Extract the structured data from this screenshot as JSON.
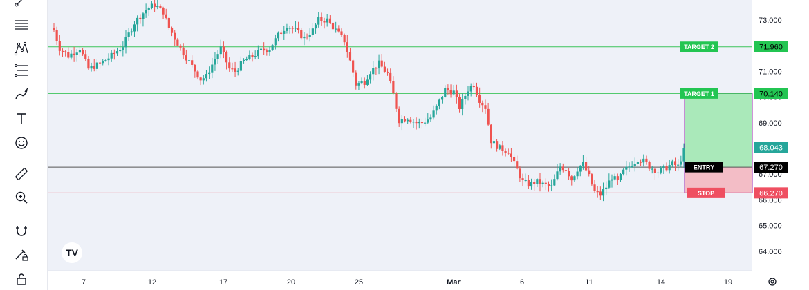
{
  "toolbar": {
    "tools": [
      "trend-line-icon",
      "horizontal-lines-icon",
      "pattern-icon",
      "fib-levels-icon",
      "brush-icon",
      "text-icon",
      "emoji-icon",
      "ruler-icon",
      "zoom-in-icon",
      "magnet-icon",
      "pencil-lock-icon",
      "lock-icon"
    ]
  },
  "logo": "TV",
  "colors": {
    "up": "#26a69a",
    "down": "#ef5350",
    "target": "#3cc45a",
    "stop": "#f05a6a",
    "entry": "#000000",
    "profit_fill": "#a5e8b6",
    "loss_fill": "#f2b9c3",
    "box_border": "#9c27b0",
    "bg": "#eef1f8"
  },
  "chart_data": {
    "type": "candlestick",
    "ylim": [
      63.6,
      73.8
    ],
    "y_ticks": [
      "73.000",
      "72.000",
      "71.000",
      "70.000",
      "69.000",
      "68.000",
      "67.000",
      "66.000",
      "65.000",
      "64.000"
    ],
    "x_labels": [
      "7",
      "12",
      "17",
      "20",
      "25",
      "Mar",
      "6",
      "11",
      "14",
      "19"
    ],
    "levels": [
      {
        "name": "TARGET 2",
        "value": 71.96,
        "label": "71.960"
      },
      {
        "name": "TARGET 1",
        "value": 70.14,
        "label": "70.140"
      },
      {
        "name": "ENTRY",
        "value": 67.27,
        "label": "67.270"
      },
      {
        "name": "STOP",
        "value": 66.27,
        "label": "66.270"
      }
    ],
    "last_price": {
      "value": 68.043,
      "label": "68.043"
    },
    "close_path": [
      [
        0,
        72.6
      ],
      [
        2,
        71.9
      ],
      [
        5,
        71.6
      ],
      [
        9,
        71.9
      ],
      [
        12,
        71.1
      ],
      [
        16,
        71.3
      ],
      [
        20,
        71.6
      ],
      [
        24,
        72.0
      ],
      [
        28,
        72.9
      ],
      [
        32,
        73.4
      ],
      [
        35,
        73.6
      ],
      [
        38,
        73.3
      ],
      [
        40,
        72.7
      ],
      [
        44,
        71.9
      ],
      [
        48,
        71.2
      ],
      [
        51,
        70.7
      ],
      [
        53,
        70.8
      ],
      [
        56,
        71.5
      ],
      [
        58,
        71.9
      ],
      [
        61,
        71.1
      ],
      [
        63,
        71.0
      ],
      [
        66,
        71.4
      ],
      [
        69,
        71.6
      ],
      [
        72,
        71.8
      ],
      [
        75,
        71.9
      ],
      [
        78,
        72.4
      ],
      [
        81,
        72.8
      ],
      [
        84,
        72.6
      ],
      [
        87,
        72.3
      ],
      [
        90,
        72.6
      ],
      [
        92,
        73.0
      ],
      [
        95,
        73.0
      ],
      [
        98,
        72.6
      ],
      [
        101,
        72.2
      ],
      [
        103,
        71.4
      ],
      [
        105,
        70.5
      ],
      [
        108,
        70.6
      ],
      [
        110,
        71.0
      ],
      [
        113,
        71.3
      ],
      [
        116,
        70.9
      ],
      [
        118,
        70.1
      ],
      [
        120,
        69.1
      ],
      [
        123,
        69.2
      ],
      [
        126,
        69.0
      ],
      [
        128,
        69.0
      ],
      [
        131,
        69.2
      ],
      [
        133,
        69.6
      ],
      [
        136,
        70.3
      ],
      [
        139,
        70.2
      ],
      [
        141,
        69.6
      ],
      [
        144,
        70.3
      ],
      [
        146,
        70.5
      ],
      [
        148,
        69.9
      ],
      [
        150,
        69.6
      ],
      [
        152,
        68.3
      ],
      [
        155,
        68.0
      ],
      [
        158,
        67.9
      ],
      [
        160,
        67.4
      ],
      [
        163,
        66.7
      ],
      [
        165,
        66.6
      ],
      [
        168,
        66.7
      ],
      [
        170,
        66.6
      ],
      [
        173,
        66.5
      ],
      [
        176,
        67.3
      ],
      [
        178,
        67.2
      ],
      [
        180,
        66.8
      ],
      [
        182,
        67.2
      ],
      [
        184,
        67.4
      ],
      [
        186,
        66.9
      ],
      [
        188,
        66.3
      ],
      [
        190,
        66.2
      ],
      [
        192,
        66.5
      ],
      [
        194,
        66.9
      ],
      [
        196,
        66.7
      ],
      [
        198,
        67.1
      ],
      [
        201,
        67.4
      ],
      [
        203,
        67.6
      ],
      [
        205,
        67.5
      ],
      [
        207,
        67.3
      ],
      [
        210,
        67.1
      ],
      [
        212,
        67.2
      ],
      [
        215,
        67.4
      ],
      [
        217,
        67.3
      ],
      [
        219,
        67.9
      ]
    ]
  }
}
